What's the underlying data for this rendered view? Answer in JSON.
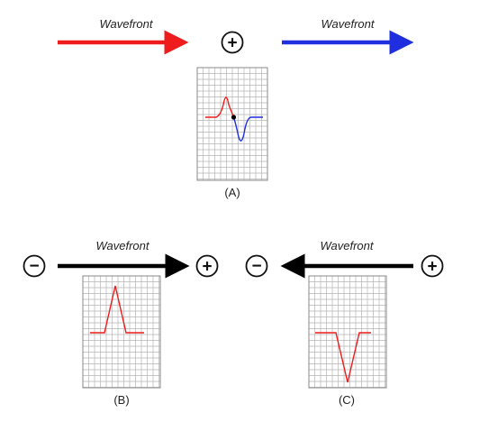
{
  "wavefront_label": "Wavefront",
  "colors": {
    "red": "#ee1c1c",
    "blue": "#1f2fe0",
    "black": "#000000",
    "grid": "#b5b5b5",
    "grid_border": "#8a8a8a",
    "dot": "#000000"
  },
  "top": {
    "left_arrow": {
      "label": "Wavefront",
      "color": "red",
      "direction": "right"
    },
    "right_arrow": {
      "label": "Wavefront",
      "color": "blue",
      "direction": "right"
    },
    "electrode": {
      "sign": "+"
    },
    "panel_label": "(A)",
    "trace": "biphasic"
  },
  "bottom_left": {
    "label": "Wavefront",
    "arrow_direction": "right",
    "negative_sign": "−",
    "positive_sign": "+",
    "panel_label": "(B)",
    "trace": "positive-deflection"
  },
  "bottom_right": {
    "label": "Wavefront",
    "arrow_direction": "left",
    "negative_sign": "−",
    "positive_sign": "+",
    "panel_label": "(C)",
    "trace": "negative-deflection"
  }
}
